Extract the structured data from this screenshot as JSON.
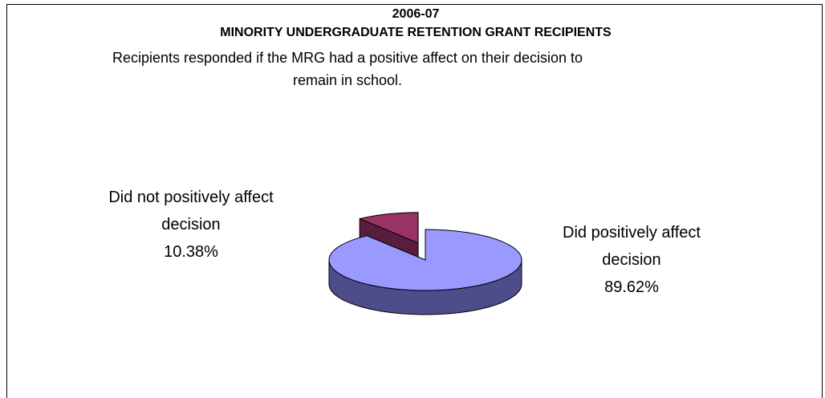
{
  "chart_data": {
    "type": "pie",
    "title": "2006-07",
    "subtitle": "MINORITY UNDERGRADUATE RETENTION GRANT RECIPIENTS",
    "annotations": [
      "Recipients responded if the MRG had a positive affect on their decision to remain in school."
    ],
    "categories": [
      "Did positively affect decision",
      "Did not positively affect decision"
    ],
    "values": [
      89.62,
      10.38
    ],
    "value_labels": [
      "89.62%",
      "10.38%"
    ],
    "colors": [
      "#9999ff",
      "#993366"
    ],
    "side_colors": [
      "#4d4d8c",
      "#5a1e3c"
    ],
    "explode": [
      false,
      true
    ]
  }
}
